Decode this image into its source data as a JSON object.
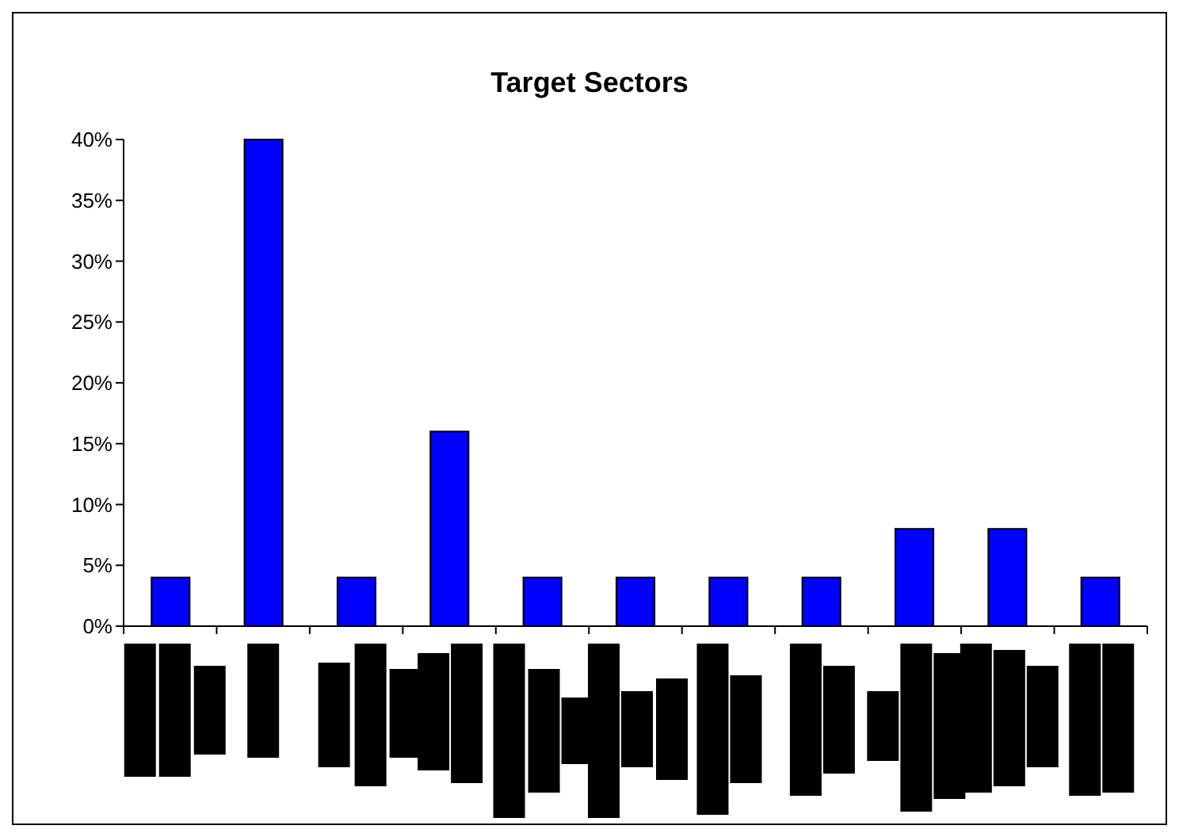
{
  "chart_data": {
    "type": "bar",
    "title": "Target Sectors",
    "categories": [
      null,
      null,
      null,
      null,
      null,
      null,
      null,
      null,
      null,
      null,
      null
    ],
    "values": [
      4,
      40,
      4,
      16,
      4,
      4,
      4,
      4,
      8,
      8,
      4
    ],
    "color": "#0000ff",
    "ylim": [
      0,
      40
    ],
    "yticks": [
      {
        "value": 0,
        "label": "0%"
      },
      {
        "value": 5,
        "label": "5%"
      },
      {
        "value": 10,
        "label": "10%"
      },
      {
        "value": 15,
        "label": "15%"
      },
      {
        "value": 20,
        "label": "20%"
      },
      {
        "value": 25,
        "label": "25%"
      },
      {
        "value": 30,
        "label": "30%"
      },
      {
        "value": 35,
        "label": "35%"
      },
      {
        "value": 40,
        "label": "40%"
      }
    ],
    "grid": false
  }
}
